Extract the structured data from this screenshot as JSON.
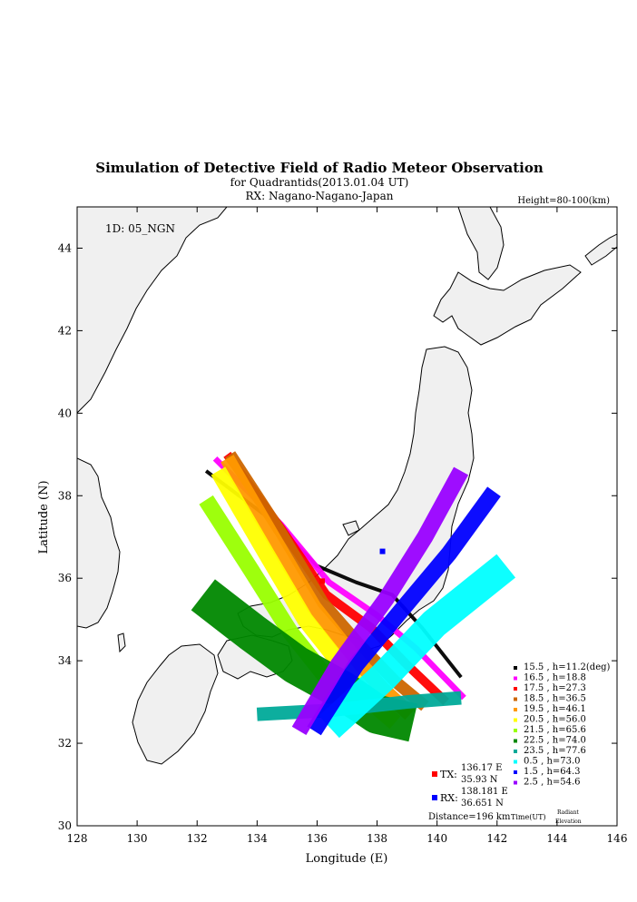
{
  "header": {
    "title": "Simulation of Detective Field of Radio Meteor Observation",
    "subtitle": "for Quadrantids(2013.01.04 UT)",
    "rx_line": "RX: Nagano-Nagano-Japan",
    "height_note": "Height=80-100(km)"
  },
  "plot": {
    "id_label": "1D: 05_NGN",
    "xlabel": "Longitude (E)",
    "ylabel": "Latitude (N)",
    "xlim": [
      128,
      146
    ],
    "ylim": [
      30,
      45
    ],
    "xticks": [
      "128",
      "130",
      "132",
      "134",
      "136",
      "138",
      "140",
      "142",
      "144",
      "146"
    ],
    "yticks": [
      "30",
      "32",
      "34",
      "36",
      "38",
      "40",
      "42",
      "44"
    ]
  },
  "stations": {
    "tx": {
      "label": "TX:",
      "lon_text": "136.17 E",
      "lat_text": "35.93 N",
      "lon": 136.17,
      "lat": 35.93,
      "color": "#ff0000"
    },
    "rx": {
      "label": "RX:",
      "lon_text": "138.181 E",
      "lat_text": "36.651 N",
      "lon": 138.181,
      "lat": 36.651,
      "color": "#0000ff"
    },
    "distance": "Distance=196 km"
  },
  "legend": {
    "footer_time": "Time(UT)",
    "footer_radiant": "Radiant",
    "footer_elevation": "Elevation",
    "items": [
      {
        "label": "15.5 , h=11.2(deg)",
        "color": "#000000"
      },
      {
        "label": "16.5 , h=18.8",
        "color": "#ff00ff"
      },
      {
        "label": "17.5 , h=27.3",
        "color": "#ff0000"
      },
      {
        "label": "18.5 , h=36.5",
        "color": "#cc6600"
      },
      {
        "label": "19.5 , h=46.1",
        "color": "#ff9900"
      },
      {
        "label": "20.5 , h=56.0",
        "color": "#ffff00"
      },
      {
        "label": "21.5 , h=65.6",
        "color": "#99ff00"
      },
      {
        "label": "22.5 , h=74.0",
        "color": "#008800"
      },
      {
        "label": "23.5 , h=77.6",
        "color": "#00aa99"
      },
      {
        "label": "0.5 , h=73.0",
        "color": "#00ffff"
      },
      {
        "label": "1.5 , h=64.3",
        "color": "#0000ff"
      },
      {
        "label": "2.5 , h=54.6",
        "color": "#9900ff"
      }
    ]
  },
  "chart_data": {
    "type": "map",
    "series": [
      {
        "name": "15.5",
        "color": "#000000",
        "width_deg": 0.12,
        "path": [
          [
            132.3,
            38.6
          ],
          [
            134.5,
            37.4
          ],
          [
            136.0,
            36.3
          ],
          [
            137.3,
            35.9
          ],
          [
            138.5,
            35.6
          ],
          [
            139.5,
            34.8
          ],
          [
            140.8,
            33.6
          ]
        ]
      },
      {
        "name": "16.5",
        "color": "#ff00ff",
        "width_deg": 0.2,
        "path": [
          [
            132.6,
            38.9
          ],
          [
            134.8,
            37.3
          ],
          [
            136.4,
            35.9
          ],
          [
            138.0,
            35.1
          ],
          [
            139.3,
            34.3
          ],
          [
            140.9,
            33.1
          ]
        ]
      },
      {
        "name": "17.5",
        "color": "#ff0000",
        "width_deg": 0.3,
        "path": [
          [
            133.0,
            39.0
          ],
          [
            134.8,
            37.2
          ],
          [
            136.3,
            35.6
          ],
          [
            137.8,
            34.8
          ],
          [
            139.0,
            33.9
          ],
          [
            140.3,
            33.0
          ]
        ]
      },
      {
        "name": "18.5",
        "color": "#cc6600",
        "width_deg": 0.4,
        "path": [
          [
            133.1,
            39.0
          ],
          [
            134.8,
            37.1
          ],
          [
            136.2,
            35.4
          ],
          [
            137.4,
            34.4
          ],
          [
            138.6,
            33.5
          ],
          [
            139.6,
            32.9
          ]
        ]
      },
      {
        "name": "19.5",
        "color": "#ff9900",
        "width_deg": 0.5,
        "path": [
          [
            133.0,
            38.9
          ],
          [
            134.6,
            36.9
          ],
          [
            135.9,
            35.3
          ],
          [
            137.1,
            34.2
          ],
          [
            138.2,
            33.3
          ],
          [
            139.1,
            32.7
          ]
        ]
      },
      {
        "name": "20.5",
        "color": "#ffff00",
        "width_deg": 0.55,
        "path": [
          [
            132.7,
            38.6
          ],
          [
            134.3,
            36.6
          ],
          [
            135.6,
            35.0
          ],
          [
            136.8,
            33.9
          ],
          [
            137.8,
            33.0
          ],
          [
            138.6,
            32.5
          ]
        ]
      },
      {
        "name": "21.5",
        "color": "#99ff00",
        "width_deg": 0.55,
        "path": [
          [
            132.3,
            37.9
          ],
          [
            133.8,
            36.2
          ],
          [
            135.1,
            34.7
          ],
          [
            136.3,
            33.6
          ],
          [
            137.2,
            32.8
          ]
        ]
      },
      {
        "name": "22.5",
        "color": "#008800",
        "width_deg": 1.3,
        "path": [
          [
            132.2,
            35.6
          ],
          [
            133.8,
            34.7
          ],
          [
            135.3,
            33.9
          ],
          [
            136.8,
            33.3
          ],
          [
            138.0,
            32.7
          ],
          [
            139.2,
            32.5
          ]
        ]
      },
      {
        "name": "23.5",
        "color": "#00aa99",
        "width_deg": 0.45,
        "path": [
          [
            134.0,
            32.7
          ],
          [
            136.5,
            32.8
          ],
          [
            139.0,
            33.0
          ],
          [
            140.8,
            33.1
          ]
        ]
      },
      {
        "name": "0.5",
        "color": "#00ffff",
        "width_deg": 1.0,
        "path": [
          [
            136.4,
            32.4
          ],
          [
            138.2,
            33.6
          ],
          [
            139.9,
            34.9
          ],
          [
            142.3,
            36.3
          ]
        ]
      },
      {
        "name": "1.5",
        "color": "#0000ff",
        "width_deg": 0.55,
        "path": [
          [
            135.9,
            32.3
          ],
          [
            137.3,
            33.9
          ],
          [
            138.9,
            35.3
          ],
          [
            140.4,
            36.6
          ],
          [
            141.9,
            38.1
          ]
        ]
      },
      {
        "name": "2.5",
        "color": "#9900ff",
        "width_deg": 0.55,
        "path": [
          [
            135.4,
            32.3
          ],
          [
            136.7,
            33.9
          ],
          [
            138.3,
            35.5
          ],
          [
            139.6,
            37.0
          ],
          [
            140.8,
            38.6
          ]
        ]
      }
    ]
  }
}
